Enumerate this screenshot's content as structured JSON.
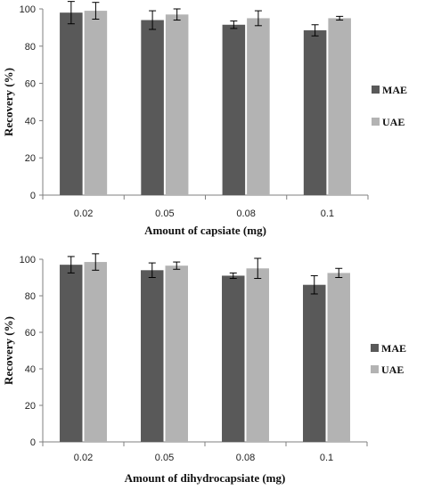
{
  "chart_data": [
    {
      "type": "bar",
      "categories": [
        "0.02",
        "0.05",
        "0.08",
        "0.1"
      ],
      "series": [
        {
          "name": "MAE",
          "values": [
            98,
            94,
            91.5,
            88.5
          ],
          "errors": [
            6,
            5,
            2,
            3
          ],
          "color": "#595959"
        },
        {
          "name": "UAE",
          "values": [
            99,
            97,
            95,
            95
          ],
          "errors": [
            4.5,
            3,
            4,
            1
          ],
          "color": "#b3b3b3"
        }
      ],
      "xlabel": "Amount of capsiate (mg)",
      "ylabel": "Recovery (%)",
      "ylim": [
        0,
        100
      ],
      "yticks": [
        0,
        20,
        40,
        60,
        80,
        100
      ],
      "grid": false,
      "legend": "right"
    },
    {
      "type": "bar",
      "categories": [
        "0.02",
        "0.05",
        "0.08",
        "0.1"
      ],
      "series": [
        {
          "name": "MAE",
          "values": [
            97,
            94,
            91,
            86
          ],
          "errors": [
            4.5,
            4,
            1.5,
            5
          ],
          "color": "#595959"
        },
        {
          "name": "UAE",
          "values": [
            98.5,
            96.5,
            95,
            92.5
          ],
          "errors": [
            4.5,
            2,
            5.5,
            2.5
          ],
          "color": "#b3b3b3"
        }
      ],
      "xlabel": "Amount of dihydrocapsiate (mg)",
      "ylabel": "Recovery (%)",
      "ylim": [
        0,
        100
      ],
      "yticks": [
        0,
        20,
        40,
        60,
        80,
        100
      ],
      "grid": false,
      "legend": "right"
    }
  ]
}
